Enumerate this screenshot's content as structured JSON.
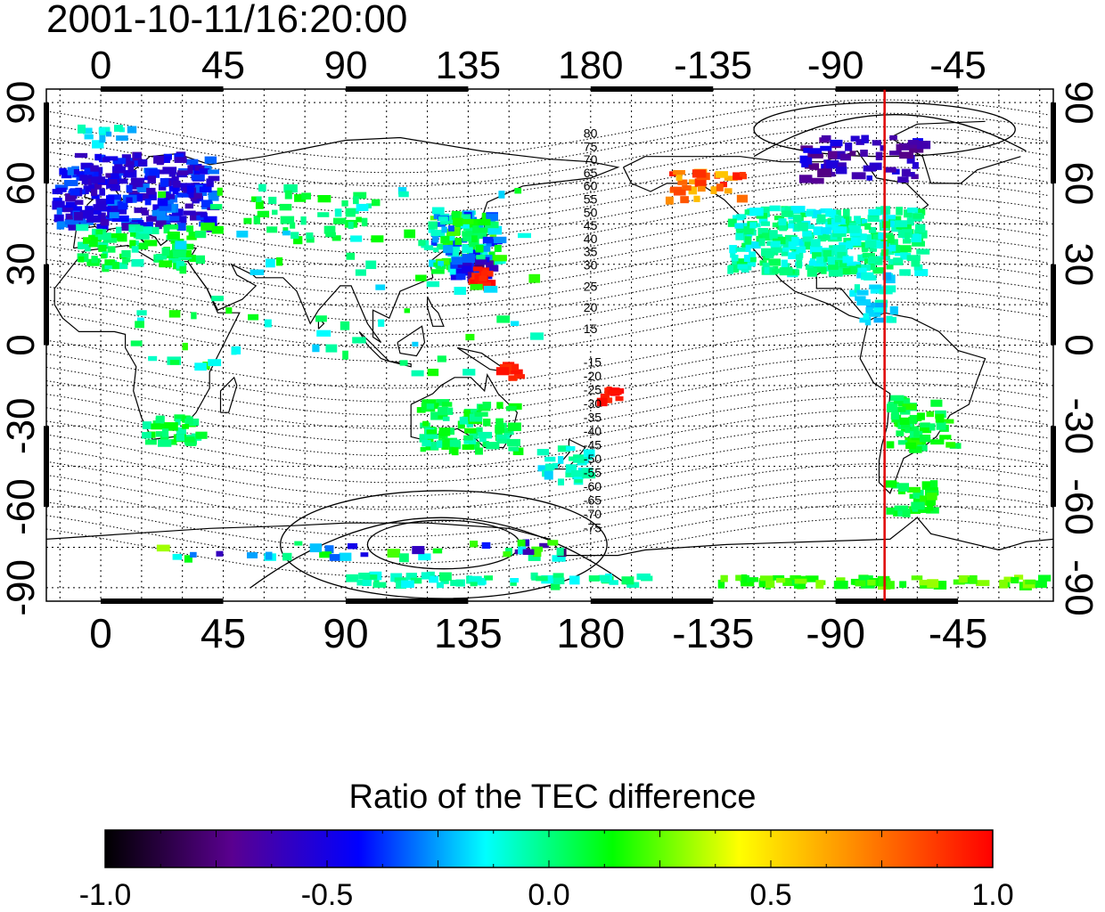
{
  "title": "2001-10-11/16:20:00",
  "lon_ticks": [
    "0",
    "45",
    "90",
    "135",
    "180",
    "-135",
    "-90",
    "-45"
  ],
  "lat_ticks": [
    "90",
    "60",
    "30",
    "0",
    "-30",
    "-60",
    "-90"
  ],
  "lon_range": [
    -20,
    350
  ],
  "lat_range": [
    -95,
    95
  ],
  "grid": true,
  "terminator_longitude": -72,
  "contour_labels_north": [
    "80",
    "75",
    "70",
    "65",
    "60",
    "55",
    "50",
    "45",
    "40",
    "35",
    "30",
    "25",
    "20",
    "15"
  ],
  "contour_labels_south": [
    "-15",
    "-20",
    "-25",
    "-30",
    "-35",
    "-40",
    "-45",
    "-50",
    "-55",
    "-60",
    "-65",
    "-70",
    "-75"
  ],
  "colorbar": {
    "title": "Ratio of the TEC difference",
    "range": [
      -1.0,
      1.0
    ],
    "tick_labels": [
      "-1.0",
      "-0.5",
      "0.0",
      "0.5",
      "1.0"
    ],
    "colors": [
      "#000000",
      "#5a0090",
      "#0000ff",
      "#00ffff",
      "#00ff00",
      "#ffff00",
      "#ff8000",
      "#ff0000"
    ]
  },
  "colors": {
    "terminator": "#e00000",
    "coast": "#000000"
  }
}
